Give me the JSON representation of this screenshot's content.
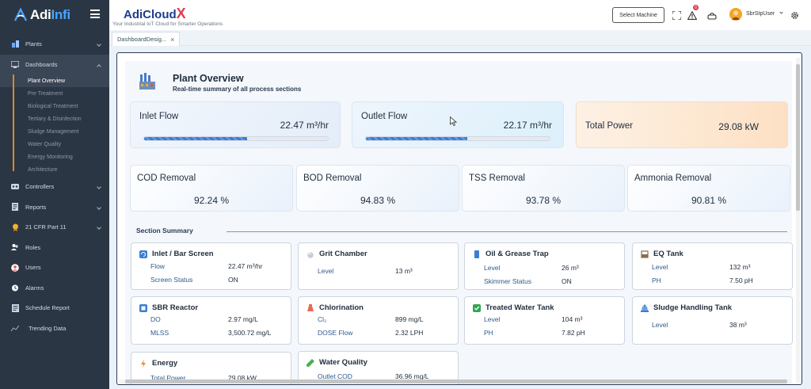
{
  "brand": {
    "name_a": "Adi",
    "name_b": "Infi"
  },
  "app": {
    "title": "AdiCloud",
    "title_x": "X",
    "subtitle": "Your Industrial IoT Cloud for Smarter Operations"
  },
  "topbar": {
    "select_machine": "Select Machine",
    "notification_count": "0",
    "user": "SbrStpUser"
  },
  "sidebar": {
    "items": [
      {
        "label": "Plants",
        "icon": "plant-icon"
      },
      {
        "label": "Dashboards",
        "icon": "dashboard-icon"
      },
      {
        "label": "Controllers",
        "icon": "controller-icon"
      },
      {
        "label": "Reports",
        "icon": "report-icon"
      },
      {
        "label": "21 CFR Part 11",
        "icon": "compliance-icon"
      },
      {
        "label": "Roles",
        "icon": "roles-icon"
      },
      {
        "label": "Users",
        "icon": "users-icon"
      },
      {
        "label": "Alarms",
        "icon": "alarm-icon"
      },
      {
        "label": "Schedule Report",
        "icon": "schedule-icon"
      },
      {
        "label": "Trending Data",
        "icon": "trend-icon"
      }
    ],
    "dashboard_subitems": [
      "Plant Overview",
      "Pre Treatment",
      "Biological Treatment",
      "Tertiary & Disinfection",
      "Sludge Management",
      "Water Quality",
      "Energy Monitoring",
      "Architecture"
    ]
  },
  "tabs": [
    {
      "label": "DashboardDesig..."
    }
  ],
  "overview": {
    "title": "Plant Overview",
    "subtitle": "Real-time summary of all process sections"
  },
  "flows": {
    "inlet": {
      "label": "Inlet Flow",
      "value": "22.47 m³/hr",
      "progress": 0.56
    },
    "outlet": {
      "label": "Outlet Flow",
      "value": "22.17 m³/hr",
      "progress": 0.55
    },
    "power": {
      "label": "Total Power",
      "value": "29.08 kW"
    }
  },
  "removals": [
    {
      "label": "COD Removal",
      "value": "92.24 %"
    },
    {
      "label": "BOD Removal",
      "value": "94.83 %"
    },
    {
      "label": "TSS Removal",
      "value": "93.78 %"
    },
    {
      "label": "Ammonia Removal",
      "value": "90.81 %"
    }
  ],
  "section_summary": {
    "title": "Section Summary"
  },
  "sections": {
    "inlet": {
      "title": "Inlet / Bar Screen",
      "r1k": "Flow",
      "r1v": "22.47 m³/hr",
      "r2k": "Screen Status",
      "r2v": "ON"
    },
    "grit": {
      "title": "Grit Chamber",
      "r1k": "Level",
      "r1v": "13 m³"
    },
    "oil": {
      "title": "Oil & Grease Trap",
      "r1k": "Level",
      "r1v": "26 m³",
      "r2k": "Skimmer Status",
      "r2v": "ON"
    },
    "eq": {
      "title": "EQ Tank",
      "r1k": "Level",
      "r1v": "132 m³",
      "r2k": "PH",
      "r2v": "7.50 pH"
    },
    "sbr": {
      "title": "SBR Reactor",
      "r1k": "DO",
      "r1v": "2.97 mg/L",
      "r2k": "MLSS",
      "r2v": "3,500.72 mg/L"
    },
    "chlor": {
      "title": "Chlorination",
      "r1k": "Cl₂",
      "r1v": "899 mg/L",
      "r2k": "DOSE Flow",
      "r2v": "2.32 LPH"
    },
    "treated": {
      "title": "Treated Water Tank",
      "r1k": "Level",
      "r1v": "104 m³",
      "r2k": "PH",
      "r2v": "7.82 pH"
    },
    "sludge": {
      "title": "Sludge Handling Tank",
      "r1k": "Level",
      "r1v": "38 m³"
    },
    "energy": {
      "title": "Energy",
      "r1k": "Total Power",
      "r1v": "29.08 kW"
    },
    "wq": {
      "title": "Water Quality",
      "r1k": "Outlet COD",
      "r1v": "36.96 mg/L"
    }
  }
}
